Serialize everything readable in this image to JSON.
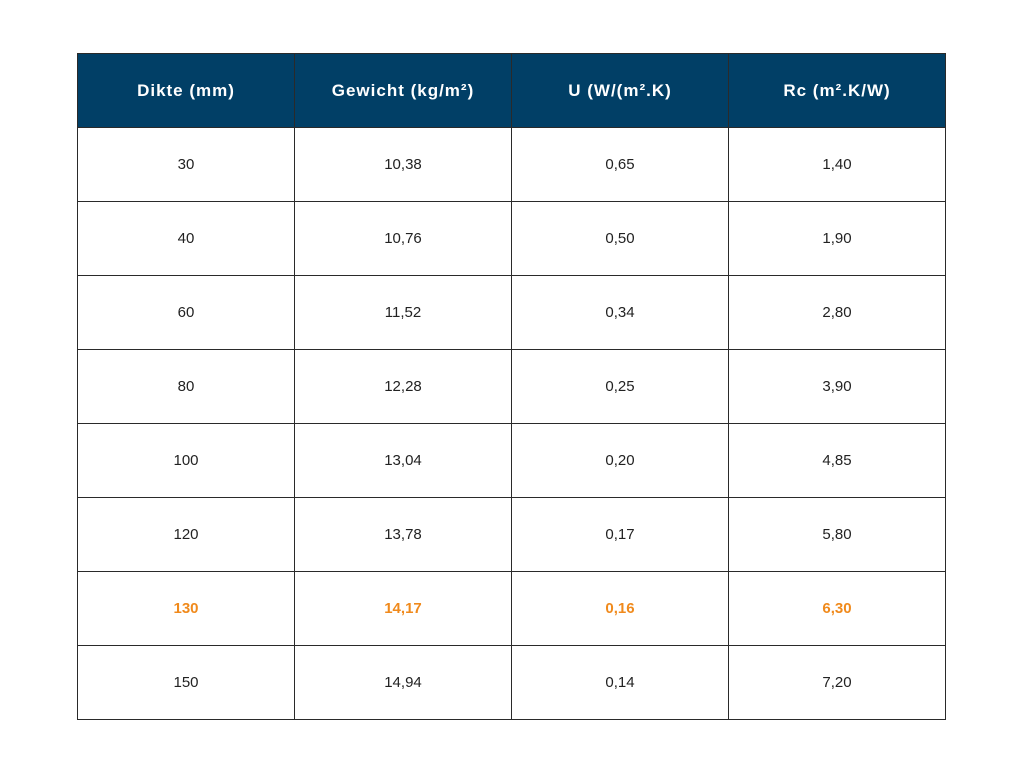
{
  "table": {
    "headers": [
      "Dikte (mm)",
      "Gewicht (kg/m²)",
      "U (W/(m².K)",
      "Rc (m².K/W)"
    ],
    "rows": [
      {
        "cells": [
          "30",
          "10,38",
          "0,65",
          "1,40"
        ],
        "highlight": false
      },
      {
        "cells": [
          "40",
          "10,76",
          "0,50",
          "1,90"
        ],
        "highlight": false
      },
      {
        "cells": [
          "60",
          "11,52",
          "0,34",
          "2,80"
        ],
        "highlight": false
      },
      {
        "cells": [
          "80",
          "12,28",
          "0,25",
          "3,90"
        ],
        "highlight": false
      },
      {
        "cells": [
          "100",
          "13,04",
          "0,20",
          "4,85"
        ],
        "highlight": false
      },
      {
        "cells": [
          "120",
          "13,78",
          "0,17",
          "5,80"
        ],
        "highlight": false
      },
      {
        "cells": [
          "130",
          "14,17",
          "0,16",
          "6,30"
        ],
        "highlight": true
      },
      {
        "cells": [
          "150",
          "14,94",
          "0,14",
          "7,20"
        ],
        "highlight": false
      }
    ]
  },
  "colors": {
    "header_background": "#013f66",
    "header_text": "#ffffff",
    "highlight_text": "#f08a1c",
    "body_text": "#222222",
    "border": "#2a2a2a"
  }
}
